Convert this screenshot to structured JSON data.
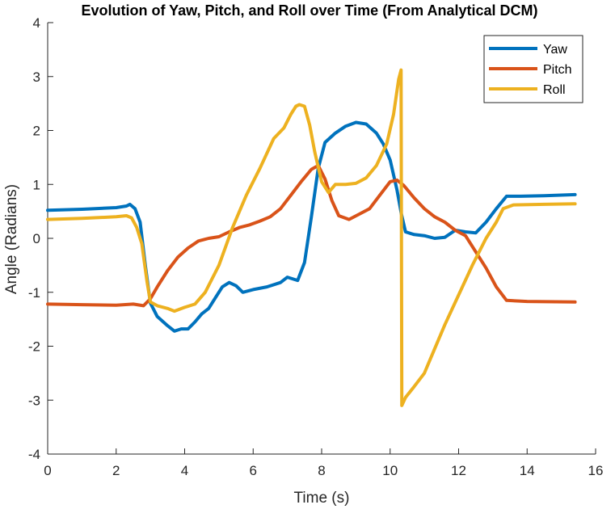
{
  "chart_data": {
    "type": "line",
    "title": "Evolution of Yaw, Pitch, and Roll over Time (From Analytical DCM)",
    "xlabel": "Time (s)",
    "ylabel": "Angle (Radians)",
    "xlim": [
      0,
      16
    ],
    "ylim": [
      -4,
      4
    ],
    "xticks": [
      0,
      2,
      4,
      6,
      8,
      10,
      12,
      14,
      16
    ],
    "yticks": [
      -4,
      -3,
      -2,
      -1,
      0,
      1,
      2,
      3,
      4
    ],
    "grid": false,
    "legend_position": "top-right",
    "series": [
      {
        "name": "Yaw",
        "color": "#0072BD",
        "x": [
          0,
          1,
          2,
          2.3,
          2.4,
          2.55,
          2.7,
          2.85,
          3.0,
          3.2,
          3.5,
          3.7,
          3.9,
          4.1,
          4.3,
          4.5,
          4.7,
          4.9,
          5.1,
          5.3,
          5.5,
          5.7,
          6.0,
          6.4,
          6.8,
          7.0,
          7.3,
          7.5,
          7.7,
          7.9,
          8.1,
          8.4,
          8.7,
          9.0,
          9.3,
          9.6,
          9.8,
          10.0,
          10.2,
          10.33,
          10.45,
          10.7,
          11.0,
          11.3,
          11.6,
          11.9,
          12.2,
          12.5,
          12.8,
          13.1,
          13.4,
          13.8,
          14.5,
          15.4
        ],
        "values": [
          0.52,
          0.54,
          0.57,
          0.6,
          0.63,
          0.55,
          0.3,
          -0.5,
          -1.2,
          -1.45,
          -1.62,
          -1.72,
          -1.68,
          -1.68,
          -1.55,
          -1.4,
          -1.3,
          -1.1,
          -0.9,
          -0.82,
          -0.88,
          -1.0,
          -0.95,
          -0.9,
          -0.82,
          -0.72,
          -0.78,
          -0.45,
          0.4,
          1.3,
          1.78,
          1.95,
          2.08,
          2.15,
          2.12,
          1.95,
          1.75,
          1.45,
          0.9,
          0.45,
          0.12,
          0.07,
          0.05,
          0.0,
          0.02,
          0.15,
          0.12,
          0.1,
          0.3,
          0.55,
          0.78,
          0.78,
          0.79,
          0.81
        ]
      },
      {
        "name": "Pitch",
        "color": "#D95319",
        "x": [
          0,
          1,
          2,
          2.5,
          2.8,
          3.0,
          3.2,
          3.5,
          3.8,
          4.1,
          4.4,
          4.7,
          5.0,
          5.3,
          5.6,
          5.9,
          6.2,
          6.5,
          6.8,
          7.1,
          7.4,
          7.7,
          7.9,
          8.1,
          8.3,
          8.5,
          8.8,
          9.1,
          9.4,
          9.7,
          10.0,
          10.2,
          10.4,
          10.7,
          11.0,
          11.3,
          11.6,
          11.9,
          12.2,
          12.5,
          12.8,
          13.1,
          13.4,
          14.0,
          15.4
        ],
        "values": [
          -1.22,
          -1.23,
          -1.24,
          -1.22,
          -1.25,
          -1.12,
          -0.9,
          -0.6,
          -0.35,
          -0.18,
          -0.05,
          0.0,
          0.03,
          0.12,
          0.2,
          0.25,
          0.32,
          0.4,
          0.55,
          0.8,
          1.05,
          1.28,
          1.35,
          1.1,
          0.7,
          0.42,
          0.35,
          0.45,
          0.55,
          0.8,
          1.05,
          1.08,
          0.98,
          0.75,
          0.55,
          0.4,
          0.3,
          0.15,
          0.05,
          -0.25,
          -0.55,
          -0.9,
          -1.15,
          -1.17,
          -1.18
        ]
      },
      {
        "name": "Roll",
        "color": "#EDB120",
        "x": [
          0,
          1,
          2,
          2.3,
          2.45,
          2.6,
          2.75,
          2.9,
          3.0,
          3.2,
          3.5,
          3.7,
          4.0,
          4.3,
          4.6,
          5.0,
          5.4,
          5.8,
          6.2,
          6.6,
          6.9,
          7.1,
          7.25,
          7.35,
          7.5,
          7.65,
          7.8,
          8.0,
          8.2,
          8.4,
          8.7,
          9.0,
          9.3,
          9.6,
          9.9,
          10.1,
          10.25,
          10.32,
          10.34,
          10.45,
          10.7,
          11.0,
          11.3,
          11.6,
          12.0,
          12.4,
          12.8,
          13.1,
          13.3,
          13.6,
          14.5,
          15.4
        ],
        "values": [
          0.35,
          0.37,
          0.4,
          0.42,
          0.38,
          0.2,
          -0.1,
          -0.8,
          -1.18,
          -1.25,
          -1.3,
          -1.35,
          -1.28,
          -1.22,
          -1.0,
          -0.5,
          0.2,
          0.8,
          1.3,
          1.85,
          2.05,
          2.3,
          2.45,
          2.48,
          2.45,
          2.1,
          1.6,
          1.05,
          0.85,
          1.0,
          1.0,
          1.02,
          1.12,
          1.35,
          1.75,
          2.3,
          2.95,
          3.12,
          -3.1,
          -2.95,
          -2.75,
          -2.5,
          -2.05,
          -1.6,
          -1.05,
          -0.5,
          0.0,
          0.3,
          0.55,
          0.62,
          0.63,
          0.64
        ]
      }
    ]
  }
}
